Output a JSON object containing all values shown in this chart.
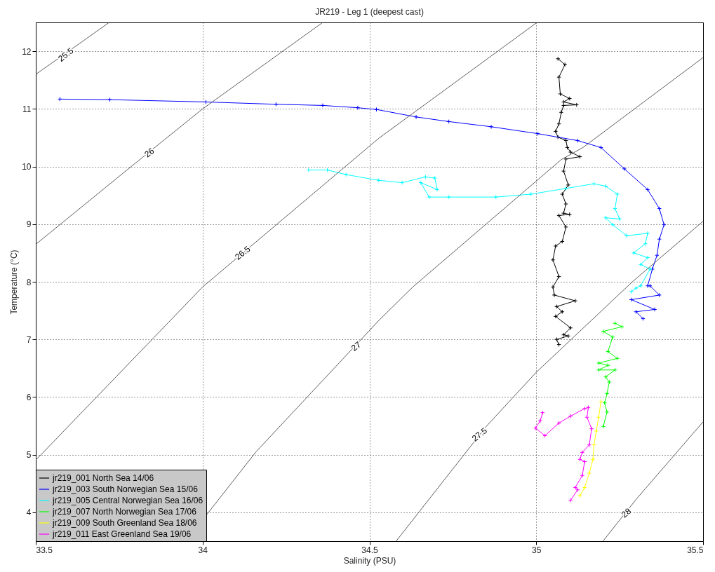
{
  "chart_data": {
    "type": "line",
    "title": "JR219 - Leg 1 (deepest cast)",
    "xlabel": "Salinity (PSU)",
    "ylabel": "Temperature (°C)",
    "xlim": [
      33.5,
      35.5
    ],
    "ylim": [
      3.5,
      12.5
    ],
    "xticks": [
      33.5,
      34,
      34.5,
      35,
      35.5
    ],
    "yticks": [
      4,
      5,
      6,
      7,
      8,
      9,
      10,
      11,
      12
    ],
    "grid": true,
    "legend": "bottom left",
    "marker": "cross",
    "series": [
      {
        "name": "jr219_001 North Sea 14/06",
        "color": "#000000",
        "x": [
          35.065,
          35.086,
          35.068,
          35.072,
          35.1,
          35.082,
          35.121,
          35.082,
          35.075,
          35.068,
          35.058,
          35.065,
          35.089,
          35.093,
          35.103,
          35.131,
          35.089,
          35.082,
          35.096,
          35.078,
          35.089,
          35.082,
          35.1,
          35.068,
          35.089,
          35.078,
          35.058,
          35.05,
          35.068,
          35.05,
          35.054,
          35.117,
          35.061,
          35.078,
          35.058,
          35.103,
          35.082,
          35.096,
          35.061,
          35.068
        ],
        "values": [
          11.87,
          11.77,
          11.55,
          11.26,
          11.18,
          11.12,
          11.07,
          11.06,
          10.94,
          10.74,
          10.61,
          10.51,
          10.45,
          10.33,
          10.25,
          10.17,
          10.13,
          9.92,
          9.68,
          9.52,
          9.35,
          9.19,
          9.17,
          9.15,
          8.95,
          8.7,
          8.62,
          8.38,
          8.09,
          7.91,
          7.77,
          7.67,
          7.57,
          7.48,
          7.4,
          7.2,
          7.08,
          7.06,
          7.0,
          6.91
        ]
      },
      {
        "name": "jr219_003 South Norwegian Sea 15/06",
        "color": "#0000ff",
        "x": [
          33.572,
          33.722,
          34.01,
          34.22,
          34.36,
          34.465,
          34.521,
          34.64,
          34.738,
          34.865,
          35.005,
          35.124,
          35.194,
          35.264,
          35.334,
          35.369,
          35.383,
          35.369,
          35.362,
          35.348,
          35.334,
          35.341,
          35.369,
          35.285,
          35.355,
          35.299,
          35.32
        ],
        "values": [
          11.17,
          11.16,
          11.12,
          11.08,
          11.06,
          11.02,
          10.99,
          10.86,
          10.78,
          10.69,
          10.57,
          10.45,
          10.33,
          9.96,
          9.6,
          9.27,
          8.99,
          8.74,
          8.46,
          8.22,
          7.93,
          7.93,
          7.77,
          7.69,
          7.52,
          7.48,
          7.36
        ]
      },
      {
        "name": "jr219_005 Central Norwegian Sea 16/06",
        "color": "#00ffff",
        "x": [
          34.318,
          34.374,
          34.43,
          34.528,
          34.598,
          34.668,
          34.696,
          34.703,
          34.654,
          34.679,
          34.738,
          34.879,
          34.984,
          35.089,
          35.173,
          35.208,
          35.243,
          35.236,
          35.25,
          35.208,
          35.229,
          35.271,
          35.334,
          35.327,
          35.292,
          35.334,
          35.313,
          35.341,
          35.313,
          35.299,
          35.285
        ],
        "values": [
          9.94,
          9.94,
          9.86,
          9.76,
          9.72,
          9.82,
          9.8,
          9.6,
          9.72,
          9.47,
          9.47,
          9.47,
          9.52,
          9.62,
          9.7,
          9.66,
          9.52,
          9.27,
          9.09,
          9.11,
          8.99,
          8.8,
          8.84,
          8.66,
          8.5,
          8.42,
          8.3,
          8.22,
          7.93,
          7.89,
          7.83
        ]
      },
      {
        "name": "jr219_007 North Norwegian Sea 17/06",
        "color": "#00ff00",
        "x": [
          35.236,
          35.257,
          35.201,
          35.229,
          35.215,
          35.243,
          35.187,
          35.215,
          35.187,
          35.236,
          35.208,
          35.219,
          35.212,
          35.205,
          35.212,
          35.201
        ],
        "values": [
          7.28,
          7.22,
          7.14,
          7.04,
          6.79,
          6.67,
          6.59,
          6.55,
          6.47,
          6.47,
          6.35,
          6.26,
          6.06,
          5.9,
          5.74,
          5.49
        ]
      },
      {
        "name": "jr219_009 South Greenland Sea 18/06",
        "color": "#ffff00",
        "x": [
          35.194,
          35.187,
          35.18,
          35.173,
          35.17,
          35.159,
          35.145,
          35.131
        ],
        "values": [
          5.92,
          5.65,
          5.41,
          5.17,
          4.92,
          4.68,
          4.43,
          4.29
        ]
      },
      {
        "name": "jr219_011 East Greenland Sea 19/06",
        "color": "#ff00ff",
        "x": [
          35.019,
          35.012,
          34.998,
          35.026,
          35.068,
          35.103,
          35.145,
          35.156,
          35.152,
          35.166,
          35.159,
          35.138,
          35.131,
          35.145,
          35.138,
          35.117,
          35.124,
          35.103
        ],
        "values": [
          5.73,
          5.59,
          5.46,
          5.33,
          5.55,
          5.67,
          5.8,
          5.82,
          5.65,
          5.45,
          5.17,
          5.04,
          4.92,
          4.88,
          4.64,
          4.43,
          4.39,
          4.21
        ]
      },
      {
        "color": "#333333",
        "marker": "none",
        "x": [
          33.5,
          33.63,
          33.72
        ],
        "values": [
          11.6,
          12.13,
          12.5
        ]
      },
      {
        "color": "#333333",
        "marker": "none",
        "x": [
          33.5,
          33.786,
          34.0,
          34.36
        ],
        "values": [
          8.65,
          10.0,
          11.0,
          12.5
        ]
      },
      {
        "color": "#333333",
        "marker": "none",
        "x": [
          33.5,
          33.519,
          34.0,
          34.528,
          35.0
        ],
        "values": [
          4.91,
          5.02,
          7.91,
          10.49,
          12.49
        ]
      },
      {
        "color": "#333333",
        "marker": "none",
        "x": [
          33.95,
          34.16,
          34.53,
          34.63,
          35.075,
          35.14,
          35.5
        ],
        "values": [
          3.5,
          5.05,
          7.34,
          7.91,
          10.12,
          10.33,
          11.89
        ]
      },
      {
        "color": "#333333",
        "marker": "none",
        "x": [
          34.58,
          34.85,
          35.0,
          35.29,
          35.5
        ],
        "values": [
          3.5,
          5.49,
          6.43,
          8.01,
          9.05
        ]
      },
      {
        "color": "#333333",
        "marker": "none",
        "x": [
          35.2,
          35.3,
          35.5
        ],
        "values": [
          3.5,
          4.23,
          5.57
        ]
      }
    ],
    "annotations": [
      {
        "text": "25.5",
        "x": 33.59,
        "y": 11.94
      },
      {
        "text": "26",
        "x": 33.84,
        "y": 10.24
      },
      {
        "text": "26.5",
        "x": 34.12,
        "y": 8.5
      },
      {
        "text": "27",
        "x": 34.46,
        "y": 6.88
      },
      {
        "text": "27.5",
        "x": 34.83,
        "y": 5.35
      },
      {
        "text": "28",
        "x": 35.27,
        "y": 3.99
      }
    ]
  }
}
